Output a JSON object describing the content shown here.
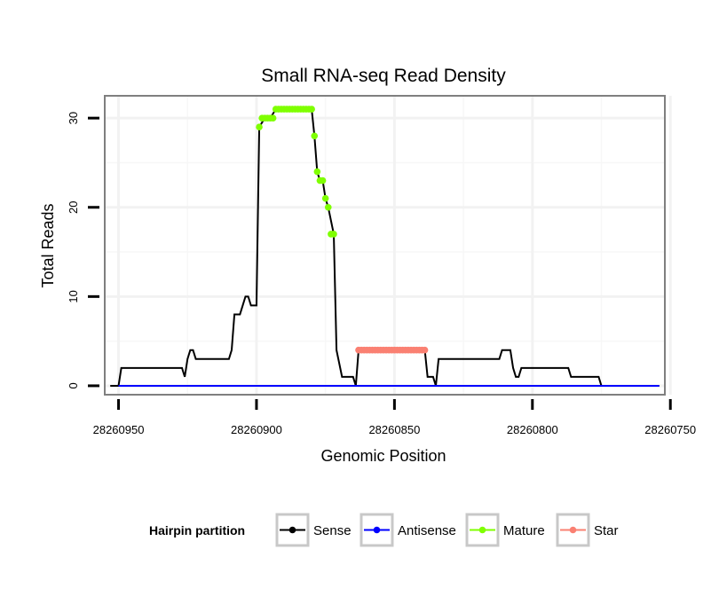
{
  "chart_data": {
    "type": "line",
    "title": "Small RNA-seq Read Density",
    "xlabel": "Genomic Position",
    "ylabel": "Total Reads",
    "x_reversed": true,
    "xlim": [
      28260955,
      28260752
    ],
    "ylim": [
      -1,
      32.5
    ],
    "x_ticks": [
      28260950,
      28260900,
      28260850,
      28260800,
      28260750
    ],
    "x_tick_labels": [
      "28260950",
      "28260900",
      "28260850",
      "28260800",
      "28260750"
    ],
    "y_ticks": [
      0,
      10,
      20,
      30
    ],
    "y_tick_labels": [
      "0",
      "10",
      "20",
      "30"
    ],
    "grid": true,
    "legend": {
      "title": "Hairpin partition",
      "position": "bottom",
      "entries": [
        {
          "label": "Sense",
          "color": "#000000"
        },
        {
          "label": "Antisense",
          "color": "#0000ff"
        },
        {
          "label": "Mature",
          "color": "#7fff00"
        },
        {
          "label": "Star",
          "color": "#fa8072"
        }
      ]
    },
    "series": [
      {
        "name": "Sense",
        "color": "#000000",
        "x": [
          28260953,
          28260950,
          28260949,
          28260927,
          28260926,
          28260925,
          28260924,
          28260923,
          28260922,
          28260920,
          28260919,
          28260918,
          28260917,
          28260916,
          28260915,
          28260913,
          28260912,
          28260911,
          28260910,
          28260909,
          28260908,
          28260906,
          28260905,
          28260904,
          28260903,
          28260902,
          28260900,
          28260899,
          28260897,
          28260896,
          28260895,
          28260893,
          28260891,
          28260889,
          28260887,
          28260885,
          28260883,
          28260881,
          28260880,
          28260879,
          28260878,
          28260877,
          28260876,
          28260875,
          28260874,
          28260872,
          28260871,
          28260869,
          28260867,
          28260865,
          28260864,
          28260863,
          28260862,
          28260861,
          28260860,
          28260839,
          28260838,
          28260836,
          28260835,
          28260834,
          28260833,
          28260831,
          28260830,
          28260829,
          28260812,
          28260811,
          28260808,
          28260807,
          28260806,
          28260805,
          28260804,
          28260802,
          28260787,
          28260786,
          28260776,
          28260775,
          28260754
        ],
        "y": [
          0,
          0,
          2,
          2,
          1,
          3,
          4,
          4,
          3,
          3,
          3,
          3,
          3,
          3,
          3,
          3,
          3,
          3,
          3,
          4,
          8,
          8,
          9,
          10,
          10,
          9,
          9,
          29,
          30,
          30,
          30,
          31,
          31,
          31,
          31,
          31,
          31,
          31,
          31,
          28,
          24,
          23,
          23,
          21,
          20,
          17,
          4,
          1,
          1,
          1,
          0,
          4,
          4,
          4,
          4,
          4,
          1,
          1,
          0,
          3,
          3,
          3,
          3,
          3,
          3,
          4,
          4,
          2,
          1,
          1,
          2,
          2,
          2,
          1,
          1,
          0,
          0
        ]
      },
      {
        "name": "Antisense",
        "color": "#0000ff",
        "x": [
          28260950,
          28260754
        ],
        "y": [
          0,
          0
        ]
      },
      {
        "name": "Mature",
        "color": "#7fff00",
        "x": [
          28260899,
          28260898,
          28260897,
          28260896,
          28260895,
          28260894,
          28260893,
          28260892,
          28260891,
          28260890,
          28260889,
          28260888,
          28260887,
          28260886,
          28260885,
          28260884,
          28260883,
          28260882,
          28260881,
          28260880,
          28260879,
          28260878,
          28260877,
          28260876,
          28260875,
          28260874,
          28260873,
          28260872
        ],
        "y": [
          29,
          30,
          30,
          30,
          30,
          30,
          31,
          31,
          31,
          31,
          31,
          31,
          31,
          31,
          31,
          31,
          31,
          31,
          31,
          31,
          28,
          24,
          23,
          23,
          21,
          20,
          17,
          17
        ]
      },
      {
        "name": "Star",
        "color": "#fa8072",
        "x": [
          28260863,
          28260862,
          28260861,
          28260860,
          28260859,
          28260858,
          28260857,
          28260856,
          28260855,
          28260854,
          28260853,
          28260852,
          28260851,
          28260850,
          28260849,
          28260848,
          28260847,
          28260846,
          28260845,
          28260844,
          28260843,
          28260842,
          28260841,
          28260840,
          28260839
        ],
        "y": [
          4,
          4,
          4,
          4,
          4,
          4,
          4,
          4,
          4,
          4,
          4,
          4,
          4,
          4,
          4,
          4,
          4,
          4,
          4,
          4,
          4,
          4,
          4,
          4,
          4
        ]
      }
    ]
  }
}
